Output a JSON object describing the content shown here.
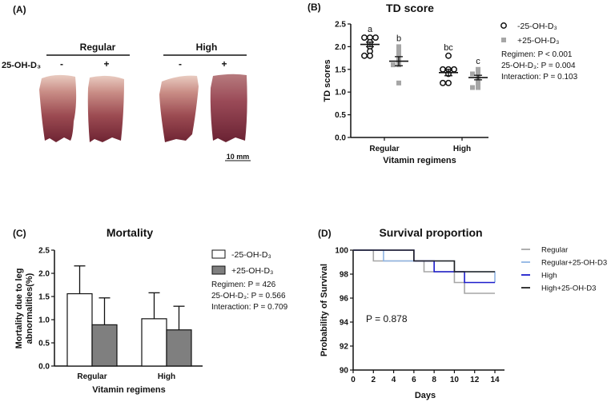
{
  "panel_a": {
    "label": "(A)",
    "group_regular": "Regular",
    "group_high": "High",
    "factor_label": "25-OH-D₃",
    "signs": [
      "-",
      "+",
      "-",
      "+"
    ],
    "scale_bar": "10 mm"
  },
  "chart_data": [
    {
      "panel": "(B)",
      "type": "scatter",
      "title": "TD score",
      "xlabel": "Vitamin regimens",
      "ylabel": "TD scores",
      "ylim": [
        0,
        2.5
      ],
      "yticks": [
        "0.0",
        "0.5",
        "1.0",
        "1.5",
        "2.0",
        "2.5"
      ],
      "categories": [
        "Regular",
        "High"
      ],
      "legend": [
        "-25-OH-D₃",
        "+25-OH-D₃"
      ],
      "legend_placement": "right",
      "colors": [
        "#111111",
        "#a6a6a6"
      ],
      "groups": [
        {
          "category": "Regular",
          "series": "-25-OH-D₃",
          "points": [
            2.2,
            2.2,
            2.2,
            2.1,
            2.0,
            1.9,
            1.8,
            1.8
          ],
          "mean": 2.05,
          "sem": 0.05,
          "letter": "a"
        },
        {
          "category": "Regular",
          "series": "+25-OH-D₃",
          "points": [
            2.0,
            1.9,
            1.8,
            1.7,
            1.6,
            1.6,
            1.2
          ],
          "mean": 1.68,
          "sem": 0.1,
          "letter": "b"
        },
        {
          "category": "High",
          "series": "-25-OH-D₃",
          "points": [
            1.8,
            1.5,
            1.5,
            1.5,
            1.4,
            1.2,
            1.2
          ],
          "mean": 1.43,
          "sem": 0.07,
          "letter": "bc"
        },
        {
          "category": "High",
          "series": "+25-OH-D₃",
          "points": [
            1.5,
            1.4,
            1.4,
            1.3,
            1.2,
            1.1,
            1.1
          ],
          "mean": 1.32,
          "sem": 0.05,
          "letter": "c"
        }
      ],
      "stats": [
        "Regimen: P < 0.001",
        "25-OH-D₃: P = 0.004",
        "Interaction: P = 0.103"
      ]
    },
    {
      "panel": "(C)",
      "type": "bar",
      "title": "Mortality",
      "xlabel": "Vitamin regimens",
      "ylabel": "Mortality due to leg abnormalities(%)",
      "ylabel_lines": [
        "Mortality due to leg",
        "abnormalities(%)"
      ],
      "ylim": [
        0,
        2.5
      ],
      "yticks": [
        "0.0",
        "0.5",
        "1.0",
        "1.5",
        "2.0",
        "2.5"
      ],
      "categories": [
        "Regular",
        "High"
      ],
      "series": [
        {
          "name": "-25-OH-D₃",
          "values": [
            1.56,
            1.02
          ],
          "errors": [
            0.6,
            0.56
          ],
          "color": "#ffffff"
        },
        {
          "name": "+25-OH-D₃",
          "values": [
            0.89,
            0.78
          ],
          "errors": [
            0.58,
            0.51
          ],
          "color": "#7f7f7f"
        }
      ],
      "legend_placement": "right",
      "stats": [
        "Regimen: P = 426",
        "25-OH-D₃: P = 0.566",
        "Interaction: P = 0.709"
      ]
    },
    {
      "panel": "(D)",
      "type": "line",
      "title": "Survival proportion",
      "xlabel": "Days",
      "ylabel": "Probability of Survival",
      "xlim": [
        0,
        14
      ],
      "ylim": [
        90,
        100
      ],
      "xticks": [
        "0",
        "2",
        "4",
        "6",
        "8",
        "10",
        "12",
        "14"
      ],
      "yticks": [
        "90",
        "92",
        "94",
        "96",
        "98",
        "100"
      ],
      "legend_placement": "right",
      "annotation": "P = 0.878",
      "series": [
        {
          "name": "Regular",
          "color": "#a6a6a6",
          "steps": [
            [
              0,
              100
            ],
            [
              2,
              99.1
            ],
            [
              7,
              98.2
            ],
            [
              10,
              97.3
            ],
            [
              11,
              96.4
            ],
            [
              14,
              96.4
            ]
          ]
        },
        {
          "name": "Regular+25-OH-D3",
          "color": "#8fb4e3",
          "steps": [
            [
              0,
              100
            ],
            [
              3,
              99.1
            ],
            [
              10,
              98.2
            ],
            [
              14,
              98.2
            ],
            [
              14,
              97.3
            ]
          ]
        },
        {
          "name": "High",
          "color": "#1c1ccc",
          "steps": [
            [
              0,
              100
            ],
            [
              6,
              99.1
            ],
            [
              8,
              98.2
            ],
            [
              11,
              97.3
            ],
            [
              14,
              97.3
            ]
          ]
        },
        {
          "name": "High+25-OH-D3",
          "color": "#222222",
          "steps": [
            [
              0,
              100
            ],
            [
              6,
              99.1
            ],
            [
              10,
              98.2
            ],
            [
              14,
              98.2
            ]
          ]
        }
      ]
    }
  ]
}
